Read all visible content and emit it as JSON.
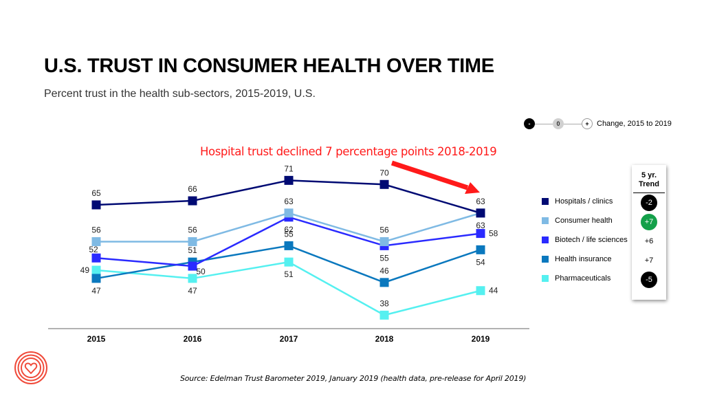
{
  "title": "U.S. TRUST IN CONSUMER HEALTH OVER TIME",
  "subtitle": "Percent trust in the health sub-sectors, 2015-2019, U.S.",
  "annotation": "Hospital trust declined 7 percentage points 2018-2019",
  "change_legend": {
    "negative_symbol": "-",
    "neutral_symbol": "0",
    "positive_symbol": "+",
    "label": "Change, 2015 to 2019"
  },
  "trend_panel": {
    "header_line1": "5 yr.",
    "header_line2": "Trend",
    "values": [
      {
        "series": "Hospitals / clinics",
        "value": "-2",
        "style": "black"
      },
      {
        "series": "Consumer health",
        "value": "+7",
        "style": "green"
      },
      {
        "series": "Biotech / life sciences",
        "value": "+6",
        "style": "plain"
      },
      {
        "series": "Health insurance",
        "value": "+7",
        "style": "plain"
      },
      {
        "series": "Pharmaceuticals",
        "value": "-5",
        "style": "black"
      }
    ]
  },
  "source": "Source: Edelman Trust Barometer 2019, January 2019 (health data, pre-release for April 2019)",
  "logo": "heart-logo",
  "colors": {
    "annotation": "#ff1a1a",
    "trend_green": "#14a04a"
  },
  "chart_data": {
    "type": "line",
    "title": "U.S. TRUST IN CONSUMER HEALTH OVER TIME",
    "subtitle": "Percent trust in the health sub-sectors, 2015-2019, U.S.",
    "xlabel": "",
    "ylabel": "",
    "categories": [
      "2015",
      "2016",
      "2017",
      "2018",
      "2019"
    ],
    "grid": false,
    "legend_position": "right",
    "series": [
      {
        "name": "Hospitals / clinics",
        "color": "#000a73",
        "values": [
          65,
          66,
          71,
          70,
          63
        ],
        "label_pos": [
          "above",
          "above",
          "above",
          "above",
          "above"
        ]
      },
      {
        "name": "Consumer health",
        "color": "#7fbae4",
        "values": [
          56,
          56,
          63,
          56,
          63
        ],
        "label_pos": [
          "above",
          "above",
          "above",
          "above",
          "below"
        ]
      },
      {
        "name": "Biotech / life sciences",
        "color": "#2a2aff",
        "values": [
          52,
          50,
          62,
          55,
          58
        ],
        "label_pos": [
          "above-left",
          "below-right",
          "below",
          "below",
          "right"
        ]
      },
      {
        "name": "Health insurance",
        "color": "#0a78be",
        "values": [
          47,
          51,
          55,
          46,
          54
        ],
        "label_pos": [
          "below",
          "above",
          "above",
          "above",
          "below"
        ]
      },
      {
        "name": "Pharmaceuticals",
        "color": "#55f0f0",
        "values": [
          49,
          47,
          51,
          38,
          44
        ],
        "label_pos": [
          "left",
          "below",
          "below",
          "above",
          "right"
        ]
      }
    ],
    "annotations": [
      {
        "text": "Hospital trust declined 7 percentage points 2018-2019",
        "type": "arrow",
        "from": "2018",
        "to": "2019",
        "series": "Hospitals / clinics"
      }
    ]
  }
}
